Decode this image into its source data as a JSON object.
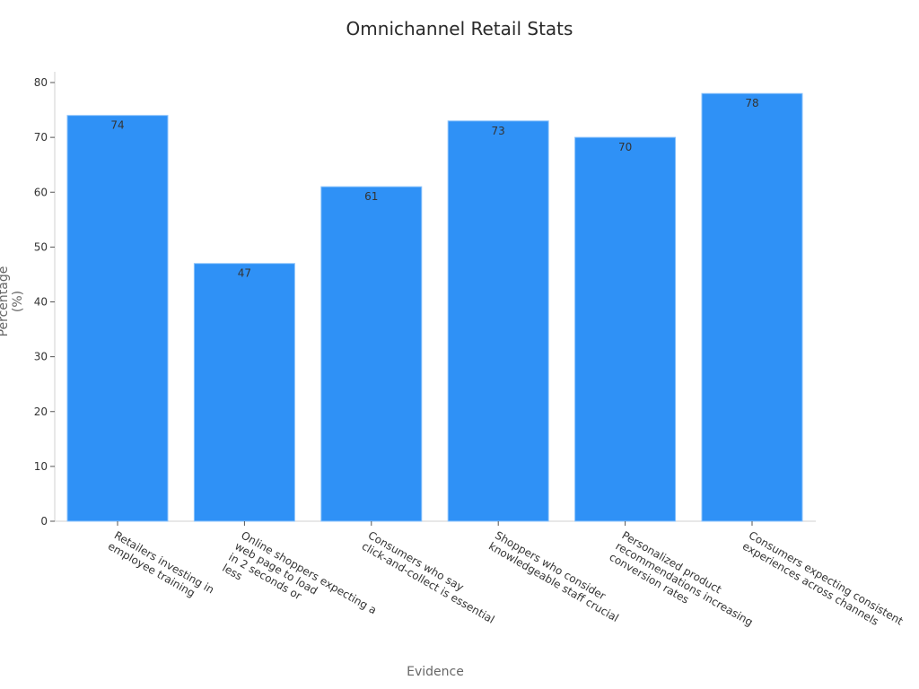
{
  "chart_data": {
    "type": "bar",
    "title": "Omnichannel Retail Stats",
    "xlabel": "Evidence",
    "ylabel": "Percentage (%)",
    "categories": [
      "Retailers investing in employee training",
      "Online shoppers expecting a web page to load in 2 seconds or less",
      "Consumers who say click-and-collect is essential",
      "Shoppers who consider knowledgeable staff crucial",
      "Personalized product recommendations increasing conversion rates",
      "Consumers expecting consistent experiences across channels"
    ],
    "category_label_lines": [
      [
        "Retailers investing in",
        "employee training"
      ],
      [
        "Online shoppers expecting a",
        "web page to load",
        "in 2 seconds or",
        "less"
      ],
      [
        "Consumers who say",
        "click-and-collect is essential"
      ],
      [
        "Shoppers who consider",
        "knowledgeable staff crucial"
      ],
      [
        "Personalized product",
        "recommendations increasing",
        "conversion rates"
      ],
      [
        "Consumers expecting consistent",
        "experiences across channels"
      ]
    ],
    "values": [
      74,
      47,
      61,
      73,
      70,
      78
    ],
    "ylim": [
      0,
      80
    ],
    "yticks": [
      0,
      10,
      20,
      30,
      40,
      50,
      60,
      70,
      80
    ],
    "grid": false,
    "legend": null,
    "bar_color": "#2f91f6",
    "data_labels": true
  }
}
